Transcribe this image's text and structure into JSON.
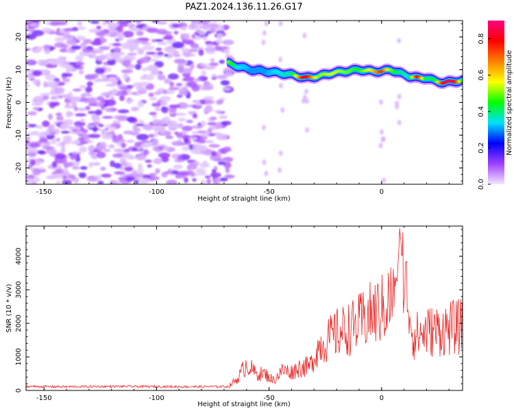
{
  "title": "PAZ1.2024.136.11.26.G17",
  "chart_data": [
    {
      "type": "heatmap",
      "xlabel": "Height of straight line (km)",
      "ylabel": "Frequency (Hz)",
      "xlim": [
        -158,
        36
      ],
      "ylim": [
        -25,
        25
      ],
      "x_ticks": [
        -150,
        -100,
        -50,
        0
      ],
      "y_ticks": [
        -20,
        -10,
        0,
        10,
        20
      ],
      "colorbar": {
        "label": "Normalized spectral amplitude",
        "range": [
          0.0,
          0.9
        ],
        "ticks": [
          0.0,
          0.2,
          0.4,
          0.6,
          0.8
        ],
        "colormap": [
          "#f2e6ff",
          "#a040ff",
          "#0000ff",
          "#00e0ff",
          "#00ff00",
          "#ffff00",
          "#ff8000",
          "#ff0000",
          "#ff007f"
        ]
      },
      "signal_track": {
        "x": [
          -68,
          -64,
          -58,
          -52,
          -46,
          -40,
          -34,
          -28,
          -22,
          -16,
          -10,
          -4,
          0,
          4,
          8,
          12,
          16,
          20,
          24,
          28,
          32,
          36
        ],
        "frequency": [
          12,
          11,
          10,
          9.5,
          9,
          8.5,
          7.5,
          8,
          9,
          9.5,
          10,
          9.5,
          9.5,
          10,
          9,
          8,
          7.5,
          7.5,
          6.5,
          6,
          6.5,
          6.5
        ],
        "peak_amplitude": [
          0.5,
          0.35,
          0.3,
          0.3,
          0.35,
          0.4,
          0.85,
          0.5,
          0.55,
          0.5,
          0.45,
          0.6,
          0.75,
          0.5,
          0.4,
          0.35,
          0.8,
          0.4,
          0.45,
          0.85,
          0.85,
          0.45
        ]
      },
      "noise_region_x": [
        -158,
        -67
      ],
      "noise_amplitude_range": [
        0.02,
        0.15
      ]
    },
    {
      "type": "line",
      "xlabel": "Height of straight line (km)",
      "ylabel": "SNR (10 * v/v)",
      "xlim": [
        -158,
        36
      ],
      "ylim": [
        0,
        4900
      ],
      "x_ticks": [
        -150,
        -100,
        -50,
        0
      ],
      "y_ticks": [
        0,
        1000,
        2000,
        3000,
        4000
      ],
      "series": [
        {
          "color": "#e8201e",
          "x": [
            -158,
            -140,
            -120,
            -100,
            -80,
            -68,
            -64,
            -60,
            -56,
            -52,
            -48,
            -44,
            -40,
            -36,
            -32,
            -28,
            -24,
            -20,
            -16,
            -12,
            -8,
            -4,
            0,
            4,
            7,
            8,
            10,
            12,
            14,
            20,
            26,
            30,
            36
          ],
          "y": [
            120,
            110,
            120,
            115,
            110,
            120,
            350,
            800,
            500,
            500,
            300,
            600,
            550,
            700,
            700,
            1300,
            1500,
            1700,
            1800,
            1900,
            2100,
            2300,
            2400,
            2700,
            3200,
            4600,
            3300,
            2600,
            1600,
            1750,
            1800,
            1850,
            1900
          ]
        }
      ]
    }
  ]
}
